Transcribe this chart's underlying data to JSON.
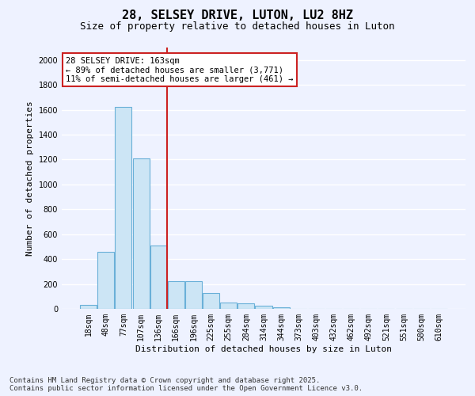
{
  "title": "28, SELSEY DRIVE, LUTON, LU2 8HZ",
  "subtitle": "Size of property relative to detached houses in Luton",
  "xlabel": "Distribution of detached houses by size in Luton",
  "ylabel": "Number of detached properties",
  "categories": [
    "18sqm",
    "48sqm",
    "77sqm",
    "107sqm",
    "136sqm",
    "166sqm",
    "196sqm",
    "225sqm",
    "255sqm",
    "284sqm",
    "314sqm",
    "344sqm",
    "373sqm",
    "403sqm",
    "432sqm",
    "462sqm",
    "492sqm",
    "521sqm",
    "551sqm",
    "580sqm",
    "610sqm"
  ],
  "values": [
    35,
    460,
    1620,
    1210,
    510,
    220,
    220,
    130,
    50,
    45,
    25,
    15,
    0,
    0,
    0,
    0,
    0,
    0,
    0,
    0,
    0
  ],
  "bar_color": "#cce5f5",
  "bar_edge_color": "#6ab0d8",
  "vline_color": "#cc2222",
  "vline_x_index": 4.5,
  "annotation_text": "28 SELSEY DRIVE: 163sqm\n← 89% of detached houses are smaller (3,771)\n11% of semi-detached houses are larger (461) →",
  "annotation_box_color": "#cc2222",
  "annotation_bg": "#ffffff",
  "ylim": [
    0,
    2100
  ],
  "yticks": [
    0,
    200,
    400,
    600,
    800,
    1000,
    1200,
    1400,
    1600,
    1800,
    2000
  ],
  "background_color": "#eef2ff",
  "grid_color": "#ffffff",
  "footer": "Contains HM Land Registry data © Crown copyright and database right 2025.\nContains public sector information licensed under the Open Government Licence v3.0.",
  "title_fontsize": 11,
  "subtitle_fontsize": 9,
  "axis_label_fontsize": 8,
  "tick_fontsize": 7,
  "annotation_fontsize": 7.5,
  "footer_fontsize": 6.5
}
